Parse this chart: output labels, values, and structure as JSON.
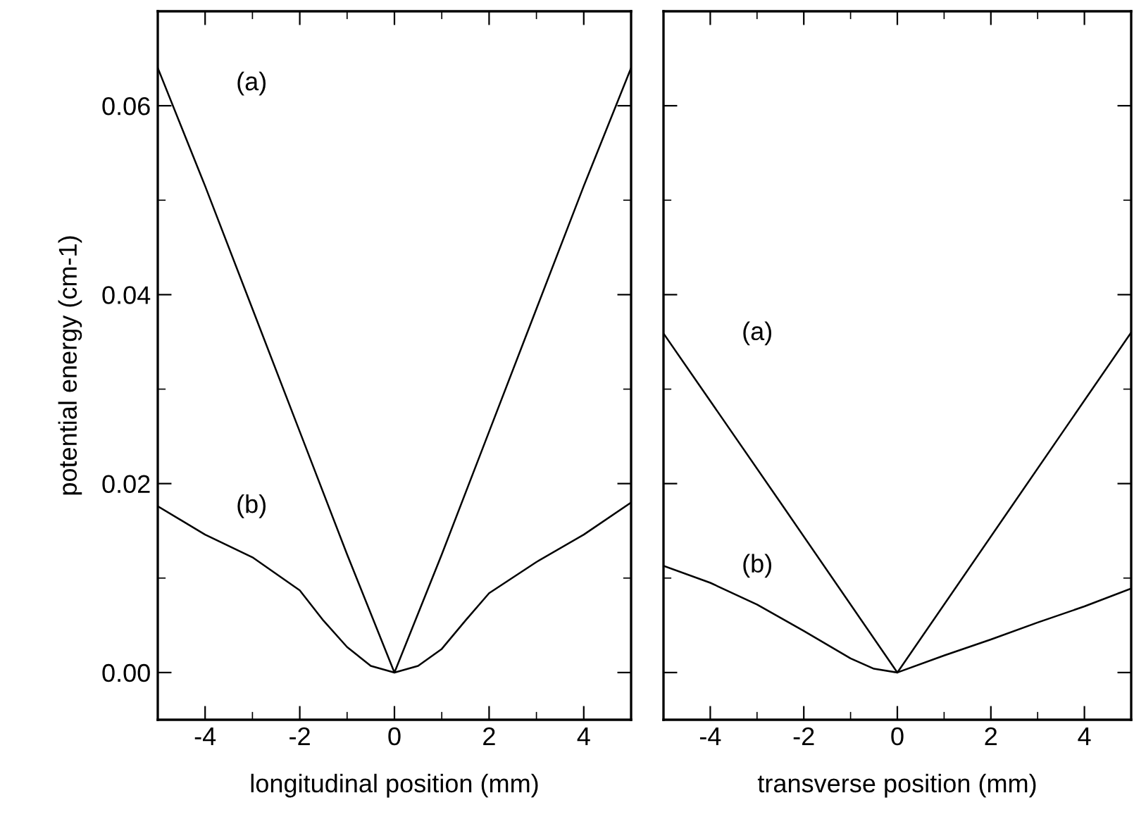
{
  "chart_data": [
    {
      "type": "line",
      "xlabel": "longitudinal position (mm)",
      "ylabel": "potential energy (cm-1)",
      "xlim": [
        -5,
        5
      ],
      "xticks": [
        -4,
        -2,
        0,
        2,
        4
      ],
      "ylim": [
        -0.005,
        0.07
      ],
      "yticks": [
        {
          "value": 0,
          "label": "0.00"
        },
        {
          "value": 0.02,
          "label": "0.02"
        },
        {
          "value": 0.04,
          "label": "0.04"
        },
        {
          "value": 0.06,
          "label": "0.06"
        }
      ],
      "grid": false,
      "legend": false,
      "marker": "none",
      "line_style": "solid",
      "series": [
        {
          "name": "(a)",
          "color": "#000000",
          "x": [
            -5,
            -4,
            -3,
            -2,
            -1,
            0,
            1,
            2,
            3,
            4,
            5
          ],
          "values": [
            0.064,
            0.0515,
            0.0385,
            0.0255,
            0.0125,
            0,
            0.0125,
            0.0255,
            0.0385,
            0.0515,
            0.064
          ]
        },
        {
          "name": "(b)",
          "color": "#000000",
          "x": [
            -5,
            -4,
            -3,
            -2,
            -1.5,
            -1,
            -0.5,
            0,
            0.5,
            1,
            1.5,
            2,
            3,
            4,
            5
          ],
          "values": [
            0.0176,
            0.0146,
            0.0122,
            0.0087,
            0.0055,
            0.0027,
            0.0007,
            0,
            0.0007,
            0.0025,
            0.0055,
            0.0084,
            0.0117,
            0.0146,
            0.018
          ]
        }
      ]
    },
    {
      "type": "line",
      "xlabel": "transverse position (mm)",
      "xlim": [
        -5,
        5
      ],
      "xticks": [
        -4,
        -2,
        0,
        2,
        4
      ],
      "ylim": [
        -0.005,
        0.07
      ],
      "yticks": [
        0,
        0.02,
        0.04,
        0.06
      ],
      "tick_labels": "x",
      "grid": false,
      "legend": false,
      "marker": "none",
      "line_style": "solid",
      "series": [
        {
          "name": "(a)",
          "color": "#000000",
          "x": [
            -5,
            -2.5,
            0,
            2.5,
            5
          ],
          "values": [
            0.0359,
            0.018,
            0,
            0.018,
            0.036
          ]
        },
        {
          "name": "(b)",
          "color": "#000000",
          "x": [
            -5,
            -4,
            -3,
            -2,
            -1,
            -0.5,
            0,
            1,
            2,
            3,
            4,
            5
          ],
          "values": [
            0.0113,
            0.0095,
            0.0072,
            0.0044,
            0.0015,
            0.0004,
            0,
            0.0018,
            0.0035,
            0.0053,
            0.007,
            0.0089
          ]
        }
      ]
    }
  ]
}
